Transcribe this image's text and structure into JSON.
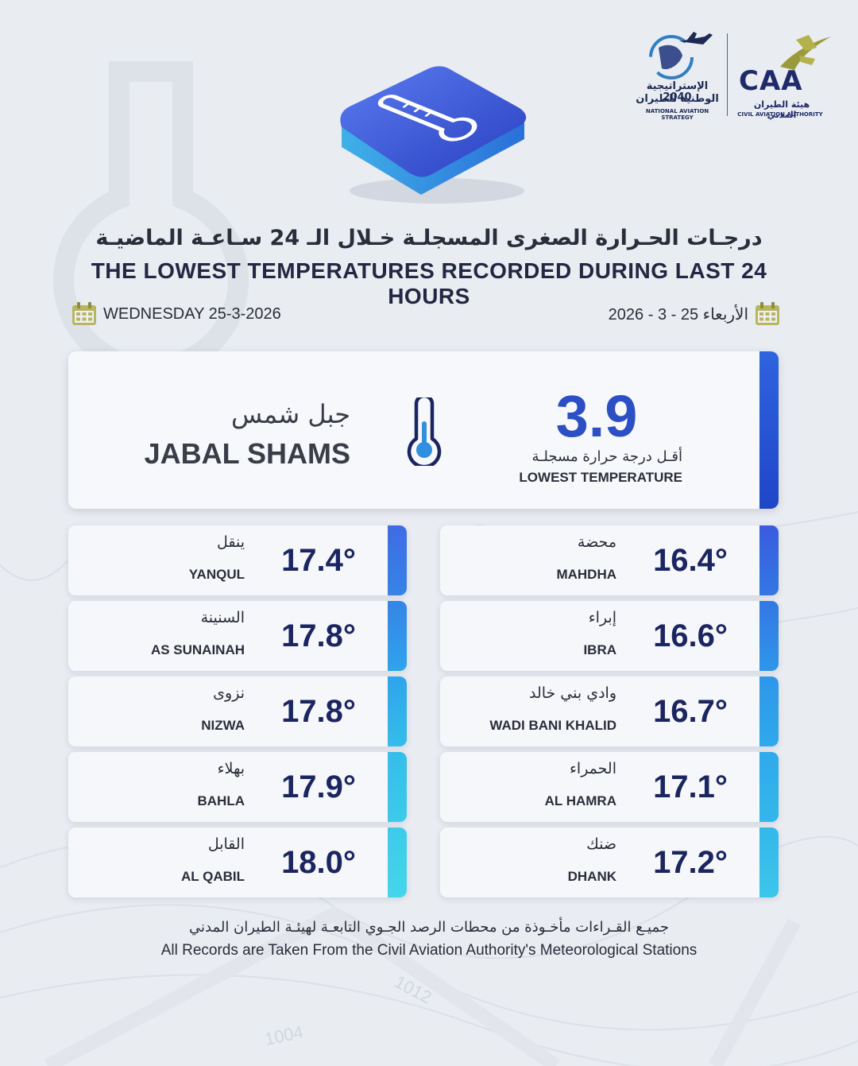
{
  "header": {
    "logo_strategy": {
      "arabic_line1": "الإستراتيجية 2040",
      "arabic_line2": "الوطنية للطيران",
      "english": "NATIONAL AVIATION STRATEGY"
    },
    "logo_caa": {
      "mark": "CAA",
      "arabic": "هيئة الطيران المدني",
      "english": "CIVIL AVIATION AUTHORITY"
    }
  },
  "title": {
    "arabic": "درجـات الحـرارة الصغرى المسجلـة خـلال الـ 24 سـاعـة الماضيـة",
    "english": "THE LOWEST TEMPERATURES RECORDED DURING LAST 24 HOURS"
  },
  "dates": {
    "english": "WEDNESDAY 25-3-2026",
    "arabic": "الأربعاء 25 - 3 - 2026"
  },
  "featured": {
    "value": "3.9",
    "label_ar": "أقـل درجة حرارة مسجلـة",
    "label_en": "LOWEST TEMPERATURE",
    "station_ar": "جبل شمس",
    "station_en": "JABAL SHAMS"
  },
  "stations_left": [
    {
      "name_ar": "ينقل",
      "name_en": "YANQUL",
      "temp": "17.4°"
    },
    {
      "name_ar": "السنينة",
      "name_en": "AS SUNAINAH",
      "temp": "17.8°"
    },
    {
      "name_ar": "نزوى",
      "name_en": "NIZWA",
      "temp": "17.8°"
    },
    {
      "name_ar": "بهلاء",
      "name_en": "BAHLA",
      "temp": "17.9°"
    },
    {
      "name_ar": "القابل",
      "name_en": "AL QABIL",
      "temp": "18.0°"
    }
  ],
  "stations_right": [
    {
      "name_ar": "محضة",
      "name_en": "MAHDHA",
      "temp": "16.4°"
    },
    {
      "name_ar": "إبراء",
      "name_en": "IBRA",
      "temp": "16.6°"
    },
    {
      "name_ar": "وادي بني خالد",
      "name_en": "WADI BANI KHALID",
      "temp": "16.7°"
    },
    {
      "name_ar": "الحمراء",
      "name_en": "AL HAMRA",
      "temp": "17.1°"
    },
    {
      "name_ar": "ضنك",
      "name_en": "DHANK",
      "temp": "17.2°"
    }
  ],
  "footer": {
    "arabic": "جميـع القـراءات مأخـوذة من محطات الرصد الجـوي التابعـة لهيئـة الطيران المدني",
    "english": "All Records are Taken From the Civil Aviation Authority's Meteorological Stations"
  },
  "background_map_labels": [
    "1004",
    "1012"
  ],
  "icons": [
    "thermometer-icon",
    "calendar-icon",
    "plane-icon"
  ],
  "colors": {
    "background": "#e9ecf1",
    "featured_accent": "#2f63e0",
    "featured_value": "#2c4fc3",
    "temp_text": "#1b2560",
    "accent_gradient": [
      "#3a5be0",
      "#2ea4ec",
      "#3fd2ea"
    ]
  }
}
